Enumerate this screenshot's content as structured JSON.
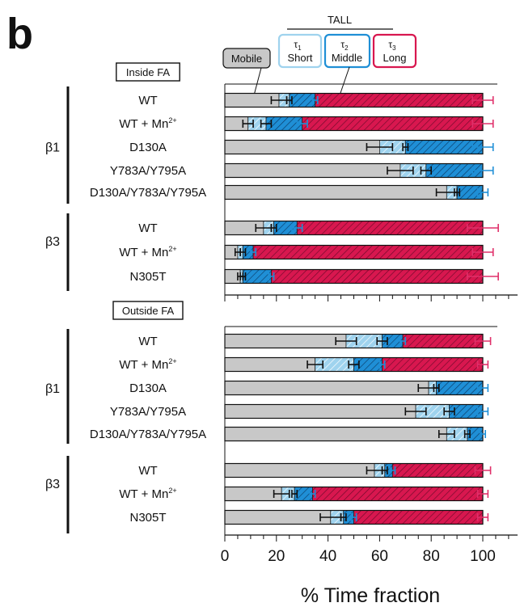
{
  "panel_label": "b",
  "legend": {
    "group_label": "TALL",
    "mobile_label": "Mobile",
    "boxes": [
      {
        "key": "short",
        "tau": "τ",
        "sub": "1",
        "label": "Short"
      },
      {
        "key": "middle",
        "tau": "τ",
        "sub": "2",
        "label": "Middle"
      },
      {
        "key": "long",
        "tau": "τ",
        "sub": "3",
        "label": "Long"
      }
    ]
  },
  "colors": {
    "mobile": "#c8c8c8",
    "short": "#9fd3ee",
    "middle": "#1f8fd6",
    "long": "#d8174f",
    "err_middle": "#1f8fd6",
    "err_long": "#e0306a"
  },
  "chart_data": [
    {
      "type": "bar",
      "orientation": "horizontal",
      "stacked": true,
      "title": "Inside FA",
      "groups": [
        {
          "name": "β1",
          "rows": [
            "WT",
            "WT + Mn²⁺",
            "D130A",
            "Y783A/Y795A",
            "D130A/Y783A/Y795A"
          ]
        },
        {
          "name": "β3",
          "rows": [
            "WT",
            "WT + Mn²⁺",
            "N305T"
          ]
        }
      ],
      "categories": [
        "WT",
        "WT + Mn²⁺",
        "D130A",
        "Y783A/Y795A",
        "D130A/Y783A/Y795A",
        "WT",
        "WT + Mn²⁺",
        "N305T"
      ],
      "series": [
        {
          "name": "Mobile",
          "values": [
            21,
            9,
            60,
            68,
            86,
            15,
            5,
            6
          ],
          "errors": [
            3,
            2,
            5,
            5,
            4,
            3,
            1,
            1
          ]
        },
        {
          "name": "Short",
          "values": [
            4,
            7,
            10,
            10,
            4,
            4,
            2,
            1
          ],
          "errors": [
            1,
            2,
            1,
            2,
            1,
            1,
            1,
            1
          ]
        },
        {
          "name": "Middle",
          "values": [
            10,
            14,
            30,
            22,
            10,
            9,
            4,
            11
          ],
          "errors": [
            1,
            2,
            4,
            4,
            2,
            2,
            1,
            1
          ]
        },
        {
          "name": "Long",
          "values": [
            65,
            70,
            0,
            0,
            0,
            72,
            89,
            82
          ],
          "errors": [
            4,
            4,
            0,
            0,
            0,
            6,
            4,
            6
          ]
        }
      ],
      "xlim": [
        0,
        115
      ]
    },
    {
      "type": "bar",
      "orientation": "horizontal",
      "stacked": true,
      "title": "Outside FA",
      "groups": [
        {
          "name": "β1",
          "rows": [
            "WT",
            "WT + Mn²⁺",
            "D130A",
            "Y783A/Y795A",
            "D130A/Y783A/Y795A"
          ]
        },
        {
          "name": "β3",
          "rows": [
            "WT",
            "WT + Mn²⁺",
            "N305T"
          ]
        }
      ],
      "categories": [
        "WT",
        "WT + Mn²⁺",
        "D130A",
        "Y783A/Y795A",
        "D130A/Y783A/Y795A",
        "WT",
        "WT + Mn²⁺",
        "N305T"
      ],
      "series": [
        {
          "name": "Mobile",
          "values": [
            47,
            35,
            79,
            74,
            86,
            58,
            22,
            41
          ],
          "errors": [
            4,
            3,
            4,
            4,
            3,
            3,
            3,
            4
          ]
        },
        {
          "name": "Short",
          "values": [
            14,
            15,
            3,
            13,
            8,
            4,
            5,
            5
          ],
          "errors": [
            2,
            2,
            1,
            2,
            1,
            1,
            1,
            1
          ]
        },
        {
          "name": "Middle",
          "values": [
            8,
            11,
            18,
            13,
            6,
            3,
            7,
            4
          ],
          "errors": [
            1,
            1,
            2,
            2,
            1,
            1,
            1,
            1
          ]
        },
        {
          "name": "Long",
          "values": [
            31,
            39,
            0,
            0,
            0,
            35,
            66,
            50
          ],
          "errors": [
            3,
            2,
            0,
            0,
            0,
            3,
            2,
            2
          ]
        }
      ],
      "xlim": [
        0,
        115
      ]
    }
  ],
  "xaxis": {
    "label": "% Time fraction",
    "ticks": [
      "0",
      "20",
      "40",
      "60",
      "80",
      "100"
    ]
  }
}
